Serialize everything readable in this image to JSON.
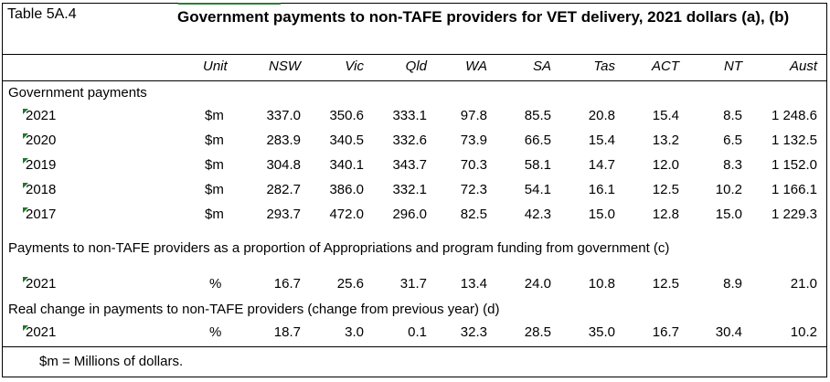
{
  "table": {
    "id": "Table 5A.4",
    "title": "Government payments to non-TAFE providers for VET delivery, 2021 dollars (a), (b)",
    "columns": [
      "Unit",
      "NSW",
      "Vic",
      "Qld",
      "WA",
      "SA",
      "Tas",
      "ACT",
      "NT",
      "Aust"
    ],
    "sections": [
      {
        "label": "Government payments",
        "rows": [
          {
            "year": "2021",
            "unit": "$m",
            "values": [
              "337.0",
              "350.6",
              "333.1",
              "97.8",
              "85.5",
              "20.8",
              "15.4",
              "8.5",
              "1 248.6"
            ]
          },
          {
            "year": "2020",
            "unit": "$m",
            "values": [
              "283.9",
              "340.5",
              "332.6",
              "73.9",
              "66.5",
              "15.4",
              "13.2",
              "6.5",
              "1 132.5"
            ]
          },
          {
            "year": "2019",
            "unit": "$m",
            "values": [
              "304.8",
              "340.1",
              "343.7",
              "70.3",
              "58.1",
              "14.7",
              "12.0",
              "8.3",
              "1 152.0"
            ]
          },
          {
            "year": "2018",
            "unit": "$m",
            "values": [
              "282.7",
              "386.0",
              "332.1",
              "72.3",
              "54.1",
              "16.1",
              "12.5",
              "10.2",
              "1 166.1"
            ]
          },
          {
            "year": "2017",
            "unit": "$m",
            "values": [
              "293.7",
              "472.0",
              "296.0",
              "82.5",
              "42.3",
              "15.0",
              "12.8",
              "15.0",
              "1 229.3"
            ]
          }
        ]
      },
      {
        "label": "Payments to non-TAFE providers as a proportion of Appropriations and program funding from government (c)",
        "rows": [
          {
            "year": "2021",
            "unit": "%",
            "values": [
              "16.7",
              "25.6",
              "31.7",
              "13.4",
              "24.0",
              "10.8",
              "12.5",
              "8.9",
              "21.0"
            ]
          }
        ]
      },
      {
        "label": "Real change in payments to non-TAFE providers (change from previous year) (d)",
        "rows": [
          {
            "year": "2021",
            "unit": "%",
            "values": [
              "18.7",
              "3.0",
              "0.1",
              "32.3",
              "28.5",
              "35.0",
              "16.7",
              "30.4",
              "10.2"
            ]
          }
        ]
      }
    ],
    "footnote": "$m = Millions of dollars."
  }
}
